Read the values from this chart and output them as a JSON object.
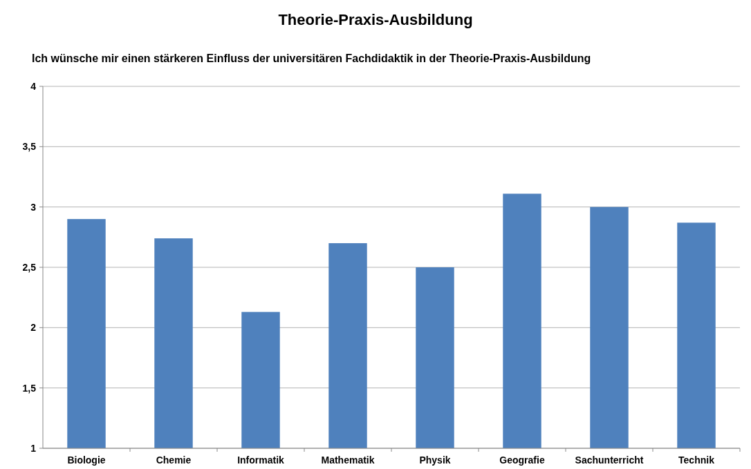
{
  "chart_data": {
    "type": "bar",
    "title": "Theorie-Praxis-Ausbildung",
    "subtitle": "Ich wünsche mir einen stärkeren Einfluss der universitären Fachdidaktik in der Theorie-Praxis-Ausbildung",
    "categories": [
      "Biologie",
      "Chemie",
      "Informatik",
      "Mathematik",
      "Physik",
      "Geografie",
      "Sachunterricht",
      "Technik"
    ],
    "values": [
      2.9,
      2.74,
      2.13,
      2.7,
      2.5,
      3.11,
      3.0,
      2.87
    ],
    "color": "#4f81bd",
    "ylim": [
      1,
      4
    ],
    "yticks": [
      1,
      {
        "value": 1.5,
        "label": "1,5"
      },
      2,
      {
        "value": 2.5,
        "label": "2,5"
      },
      3,
      {
        "value": 3.5,
        "label": "3,5"
      },
      4
    ],
    "grid": "y"
  }
}
